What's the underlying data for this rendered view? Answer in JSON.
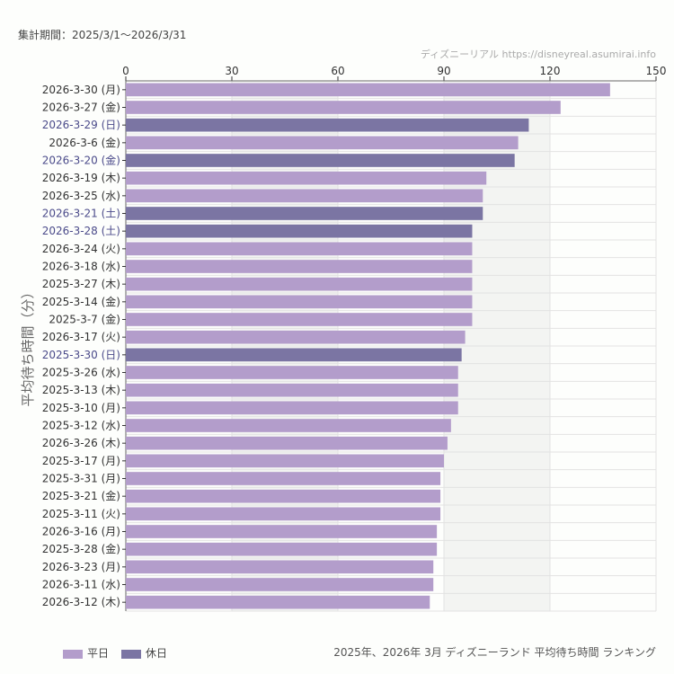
{
  "header": {
    "period": "集計期間：2025/3/1〜2026/3/31",
    "credit": "ディズニーリアル https://disneyreal.asumirai.info"
  },
  "footer": {
    "caption": "2025年、2026年 3月 ディズニーランド 平均待ち時間 ランキング"
  },
  "legend": [
    {
      "label": "平日",
      "color": "#b39dcb"
    },
    {
      "label": "休日",
      "color": "#7b75a3"
    }
  ],
  "chart_data": {
    "type": "bar",
    "orientation": "horizontal",
    "ylabel": "平均待ち時間（分）",
    "xlim": [
      0,
      150
    ],
    "xticks": [
      0,
      30,
      60,
      90,
      120,
      150
    ],
    "grid": true,
    "legend_position": "bottom-left",
    "colors": {
      "weekday": "#b39dcb",
      "holiday": "#7b75a3",
      "holiday_label": "#4b4b8a"
    },
    "categories": [
      "2026-3-30 (月)",
      "2026-3-27 (金)",
      "2026-3-29 (日)",
      "2026-3-6 (金)",
      "2026-3-20 (金)",
      "2026-3-19 (木)",
      "2026-3-25 (水)",
      "2026-3-21 (土)",
      "2026-3-28 (土)",
      "2026-3-24 (火)",
      "2026-3-18 (水)",
      "2025-3-27 (木)",
      "2025-3-14 (金)",
      "2025-3-7 (金)",
      "2026-3-17 (火)",
      "2025-3-30 (日)",
      "2025-3-26 (水)",
      "2025-3-13 (木)",
      "2025-3-10 (月)",
      "2025-3-12 (水)",
      "2026-3-26 (木)",
      "2025-3-17 (月)",
      "2025-3-31 (月)",
      "2025-3-21 (金)",
      "2025-3-11 (火)",
      "2026-3-16 (月)",
      "2025-3-28 (金)",
      "2026-3-23 (月)",
      "2026-3-11 (水)",
      "2026-3-12 (木)"
    ],
    "values": [
      137,
      123,
      114,
      111,
      110,
      102,
      101,
      101,
      98,
      98,
      98,
      98,
      98,
      98,
      96,
      95,
      94,
      94,
      94,
      92,
      91,
      90,
      89,
      89,
      89,
      88,
      88,
      87,
      87,
      86
    ],
    "holiday": [
      false,
      false,
      true,
      false,
      true,
      false,
      false,
      true,
      true,
      false,
      false,
      false,
      false,
      false,
      false,
      true,
      false,
      false,
      false,
      false,
      false,
      false,
      false,
      false,
      false,
      false,
      false,
      false,
      false,
      false
    ]
  }
}
